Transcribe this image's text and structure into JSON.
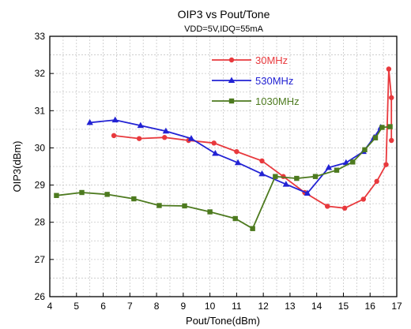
{
  "chart_data": {
    "type": "line",
    "title": "OIP3 vs Pout/Tone",
    "subtitle": "VDD=5V,IDQ=55mA",
    "xlabel": "Pout/Tone(dBm)",
    "ylabel": "OIP3(dBm)",
    "xlim": [
      4,
      17
    ],
    "ylim": [
      26,
      33
    ],
    "xticks": [
      4,
      5,
      6,
      7,
      8,
      9,
      10,
      11,
      12,
      13,
      14,
      15,
      16,
      17
    ],
    "yticks": [
      26,
      27,
      28,
      29,
      30,
      31,
      32,
      33
    ],
    "grid": true,
    "legend_position": "top-right",
    "series": [
      {
        "name": "30MHz",
        "color": "#e8393d",
        "marker": "circle",
        "x": [
          6.4,
          7.35,
          8.3,
          9.2,
          10.15,
          11.0,
          11.95,
          12.75,
          13.55,
          14.4,
          15.05,
          15.75,
          16.25,
          16.6,
          16.7,
          16.8,
          16.8
        ],
        "y": [
          30.33,
          30.25,
          30.28,
          30.2,
          30.13,
          29.9,
          29.65,
          29.23,
          28.8,
          28.43,
          28.38,
          28.62,
          29.1,
          29.55,
          32.12,
          31.35,
          30.2
        ]
      },
      {
        "name": "530MHz",
        "color": "#2222d4",
        "marker": "triangle",
        "x": [
          5.5,
          6.45,
          7.4,
          8.35,
          9.3,
          10.2,
          11.05,
          11.95,
          12.85,
          13.65,
          14.45,
          15.1,
          15.75,
          16.15,
          16.4
        ],
        "y": [
          30.68,
          30.75,
          30.6,
          30.45,
          30.25,
          29.85,
          29.6,
          29.3,
          29.02,
          28.78,
          29.47,
          29.6,
          29.9,
          30.28,
          30.55
        ]
      },
      {
        "name": "1030MHz",
        "color": "#4d7a1f",
        "marker": "square",
        "x": [
          4.25,
          5.2,
          6.15,
          7.15,
          8.1,
          9.05,
          10.0,
          10.95,
          11.6,
          12.45,
          13.25,
          13.95,
          14.75,
          15.35,
          15.8,
          16.2,
          16.45,
          16.75
        ],
        "y": [
          28.72,
          28.8,
          28.75,
          28.63,
          28.45,
          28.44,
          28.28,
          28.1,
          27.83,
          29.23,
          29.18,
          29.23,
          29.4,
          29.62,
          29.95,
          30.27,
          30.55,
          30.57
        ]
      }
    ]
  }
}
